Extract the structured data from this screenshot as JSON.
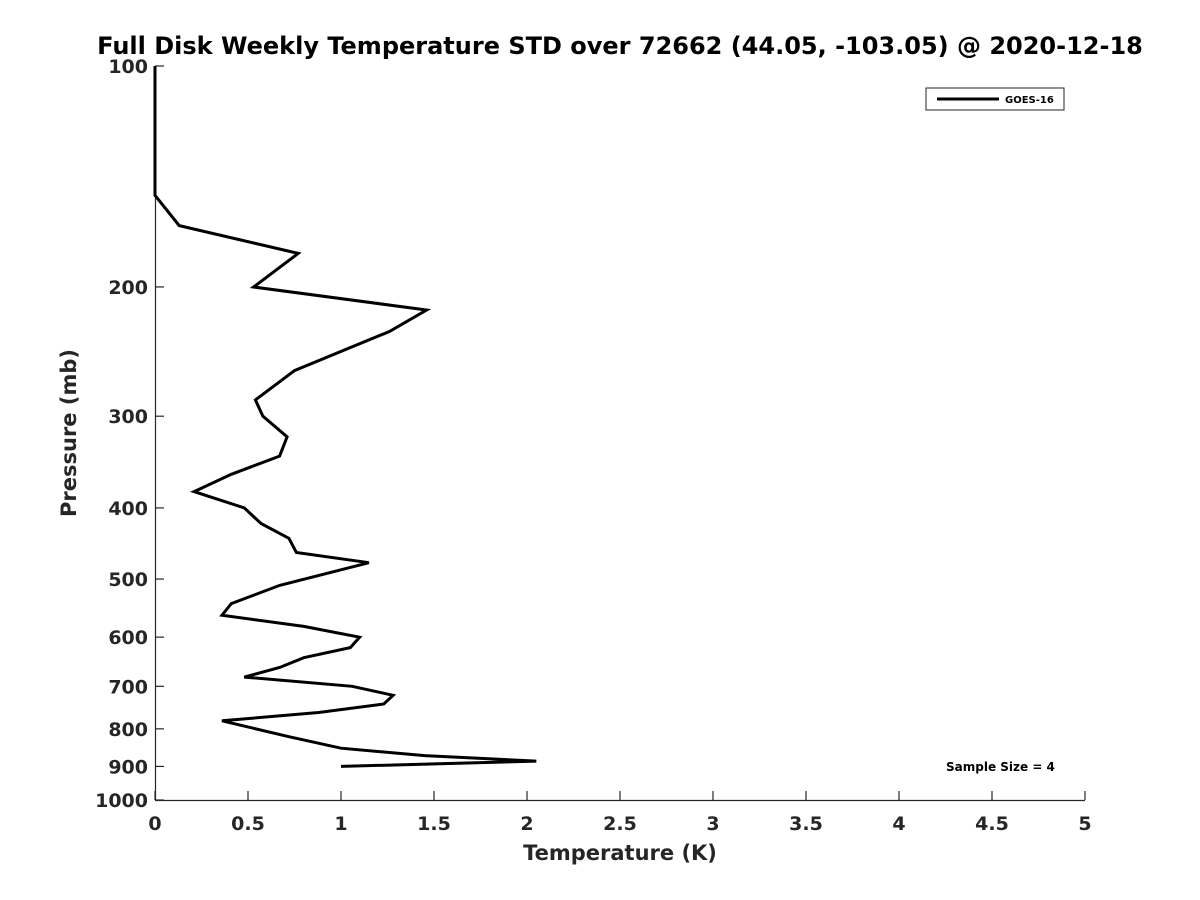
{
  "chart_data": {
    "type": "line",
    "title": "Full Disk Weekly Temperature STD over 72662 (44.05, -103.05) @ 2020-12-18",
    "xlabel": "Temperature (K)",
    "ylabel": "Pressure (mb)",
    "xlim": [
      0,
      5
    ],
    "ylim": [
      100,
      1000
    ],
    "y_scale": "log",
    "y_reversed": true,
    "grid": false,
    "legend_position": "top-right",
    "x_ticks": [
      "0",
      "0.5",
      "1",
      "1.5",
      "2",
      "2.5",
      "3",
      "3.5",
      "4",
      "4.5",
      "5"
    ],
    "y_ticks": [
      "100",
      "200",
      "300",
      "400",
      "500",
      "600",
      "700",
      "800",
      "900",
      "1000"
    ],
    "series": [
      {
        "name": "GOES-16",
        "color": "#000000",
        "points": [
          {
            "x": 0.0,
            "p": 100
          },
          {
            "x": 0.0,
            "p": 125
          },
          {
            "x": 0.0,
            "p": 150
          },
          {
            "x": 0.13,
            "p": 165
          },
          {
            "x": 0.77,
            "p": 180
          },
          {
            "x": 0.53,
            "p": 200
          },
          {
            "x": 1.46,
            "p": 215
          },
          {
            "x": 1.26,
            "p": 230
          },
          {
            "x": 0.75,
            "p": 260
          },
          {
            "x": 0.54,
            "p": 285
          },
          {
            "x": 0.58,
            "p": 300
          },
          {
            "x": 0.71,
            "p": 320
          },
          {
            "x": 0.67,
            "p": 340
          },
          {
            "x": 0.41,
            "p": 360
          },
          {
            "x": 0.21,
            "p": 380
          },
          {
            "x": 0.48,
            "p": 400
          },
          {
            "x": 0.57,
            "p": 420
          },
          {
            "x": 0.72,
            "p": 440
          },
          {
            "x": 0.76,
            "p": 460
          },
          {
            "x": 1.15,
            "p": 475
          },
          {
            "x": 0.67,
            "p": 510
          },
          {
            "x": 0.41,
            "p": 540
          },
          {
            "x": 0.36,
            "p": 560
          },
          {
            "x": 0.8,
            "p": 580
          },
          {
            "x": 1.1,
            "p": 600
          },
          {
            "x": 1.05,
            "p": 620
          },
          {
            "x": 0.8,
            "p": 640
          },
          {
            "x": 0.67,
            "p": 660
          },
          {
            "x": 0.48,
            "p": 680
          },
          {
            "x": 1.06,
            "p": 700
          },
          {
            "x": 1.28,
            "p": 720
          },
          {
            "x": 1.23,
            "p": 740
          },
          {
            "x": 0.88,
            "p": 760
          },
          {
            "x": 0.36,
            "p": 780
          },
          {
            "x": 0.72,
            "p": 820
          },
          {
            "x": 1.0,
            "p": 850
          },
          {
            "x": 1.45,
            "p": 870
          },
          {
            "x": 2.05,
            "p": 885
          },
          {
            "x": 1.0,
            "p": 900
          }
        ]
      }
    ],
    "annotation": "Sample Size = 4"
  }
}
